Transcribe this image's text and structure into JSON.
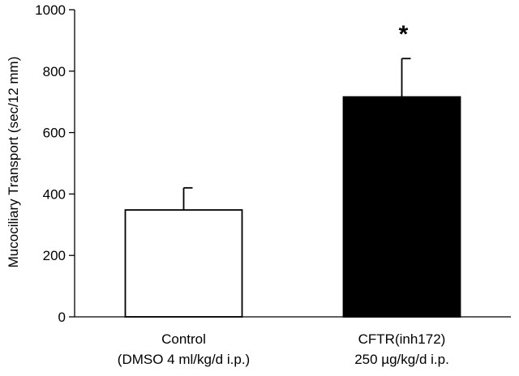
{
  "chart_data": {
    "type": "bar",
    "title": "",
    "ylabel": "Mucociliary Transport (sec/12 mm)",
    "xlabel": "",
    "ylim": [
      0,
      1000
    ],
    "yticks": [
      0,
      200,
      400,
      600,
      800,
      1000
    ],
    "ytick_labels": [
      "0",
      "200",
      "400",
      "600",
      "800",
      "1000"
    ],
    "categories": [
      {
        "line1": "Control",
        "line2": "(DMSO 4 ml/kg/d i.p.)"
      },
      {
        "line1": "CFTR(inh172)",
        "line2": "250 µg/kg/d i.p."
      }
    ],
    "values": [
      348,
      716
    ],
    "errors": [
      72,
      125
    ],
    "colors": {
      "fill": [
        "#ffffff",
        "#000000"
      ],
      "stroke": "#000000"
    },
    "annotations": [
      {
        "category_index": 1,
        "text": "*"
      }
    ]
  }
}
